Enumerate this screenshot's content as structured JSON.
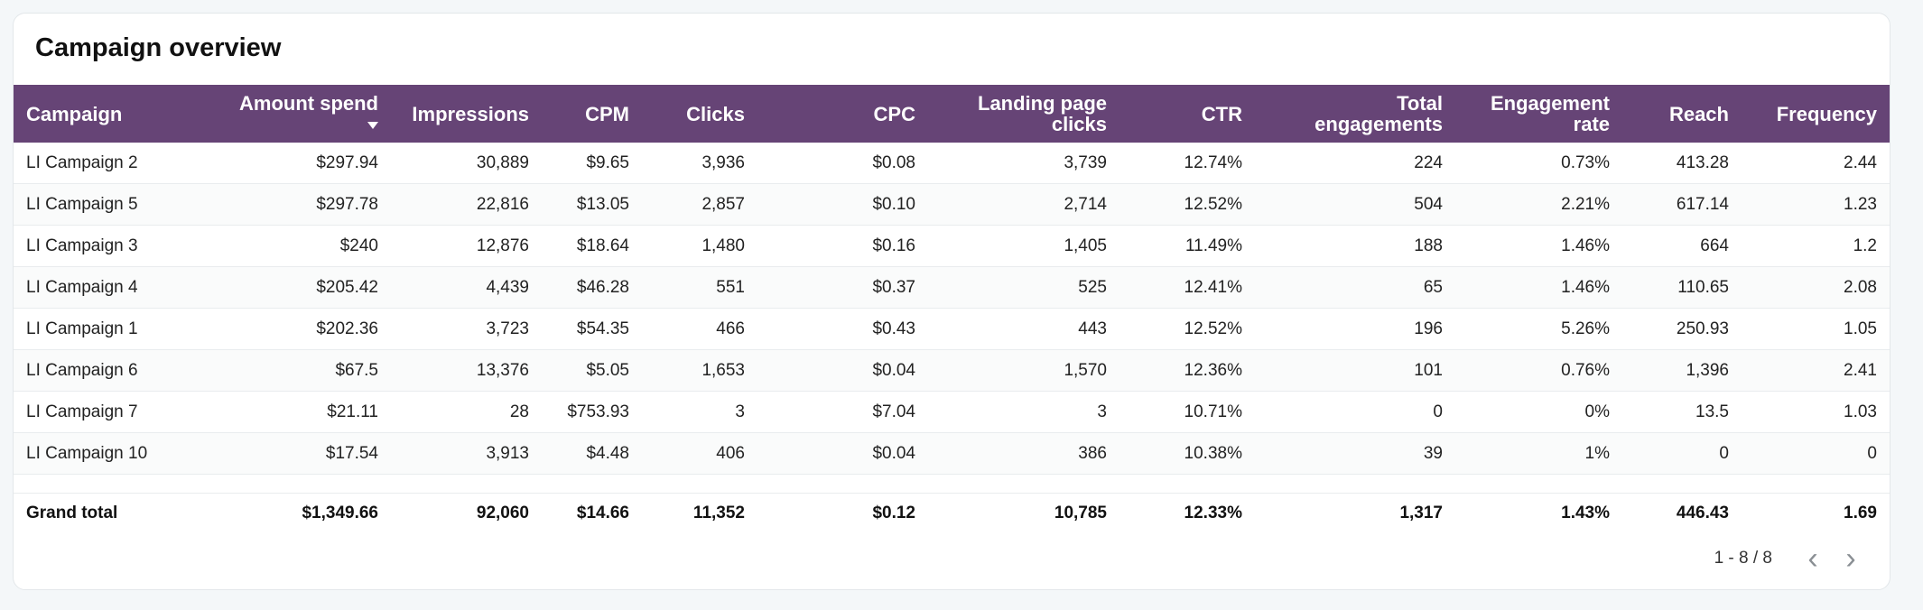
{
  "card": {
    "title": "Campaign overview"
  },
  "table": {
    "columns": [
      {
        "label": "Campaign"
      },
      {
        "label": "Amount spend",
        "sorted": "desc",
        "sort_icon": "caret-down-icon"
      },
      {
        "label": "Impressions"
      },
      {
        "label": "CPM"
      },
      {
        "label": "Clicks"
      },
      {
        "label": "CPC"
      },
      {
        "label": "Landing page clicks"
      },
      {
        "label": "CTR"
      },
      {
        "label": "Total engagements"
      },
      {
        "label": "Engagement rate"
      },
      {
        "label": "Reach"
      },
      {
        "label": "Frequency"
      }
    ],
    "rows": [
      [
        "LI Campaign 2",
        "$297.94",
        "30,889",
        "$9.65",
        "3,936",
        "$0.08",
        "3,739",
        "12.74%",
        "224",
        "0.73%",
        "413.28",
        "2.44"
      ],
      [
        "LI Campaign 5",
        "$297.78",
        "22,816",
        "$13.05",
        "2,857",
        "$0.10",
        "2,714",
        "12.52%",
        "504",
        "2.21%",
        "617.14",
        "1.23"
      ],
      [
        "LI Campaign 3",
        "$240",
        "12,876",
        "$18.64",
        "1,480",
        "$0.16",
        "1,405",
        "11.49%",
        "188",
        "1.46%",
        "664",
        "1.2"
      ],
      [
        "LI Campaign 4",
        "$205.42",
        "4,439",
        "$46.28",
        "551",
        "$0.37",
        "525",
        "12.41%",
        "65",
        "1.46%",
        "110.65",
        "2.08"
      ],
      [
        "LI Campaign 1",
        "$202.36",
        "3,723",
        "$54.35",
        "466",
        "$0.43",
        "443",
        "12.52%",
        "196",
        "5.26%",
        "250.93",
        "1.05"
      ],
      [
        "LI Campaign 6",
        "$67.5",
        "13,376",
        "$5.05",
        "1,653",
        "$0.04",
        "1,570",
        "12.36%",
        "101",
        "0.76%",
        "1,396",
        "2.41"
      ],
      [
        "LI Campaign 7",
        "$21.11",
        "28",
        "$753.93",
        "3",
        "$7.04",
        "3",
        "10.71%",
        "0",
        "0%",
        "13.5",
        "1.03"
      ],
      [
        "LI Campaign 10",
        "$17.54",
        "3,913",
        "$4.48",
        "406",
        "$0.04",
        "386",
        "10.38%",
        "39",
        "1%",
        "0",
        "0"
      ]
    ],
    "total": [
      "Grand total",
      "$1,349.66",
      "92,060",
      "$14.66",
      "11,352",
      "$0.12",
      "10,785",
      "12.33%",
      "1,317",
      "1.43%",
      "446.43",
      "1.69"
    ]
  },
  "pagination": {
    "range": "1 - 8 / 8",
    "prev_icon": "chevron-left-icon",
    "next_icon": "chevron-right-icon"
  },
  "colors": {
    "header_bg": "#664476",
    "header_text": "#ffffff"
  }
}
